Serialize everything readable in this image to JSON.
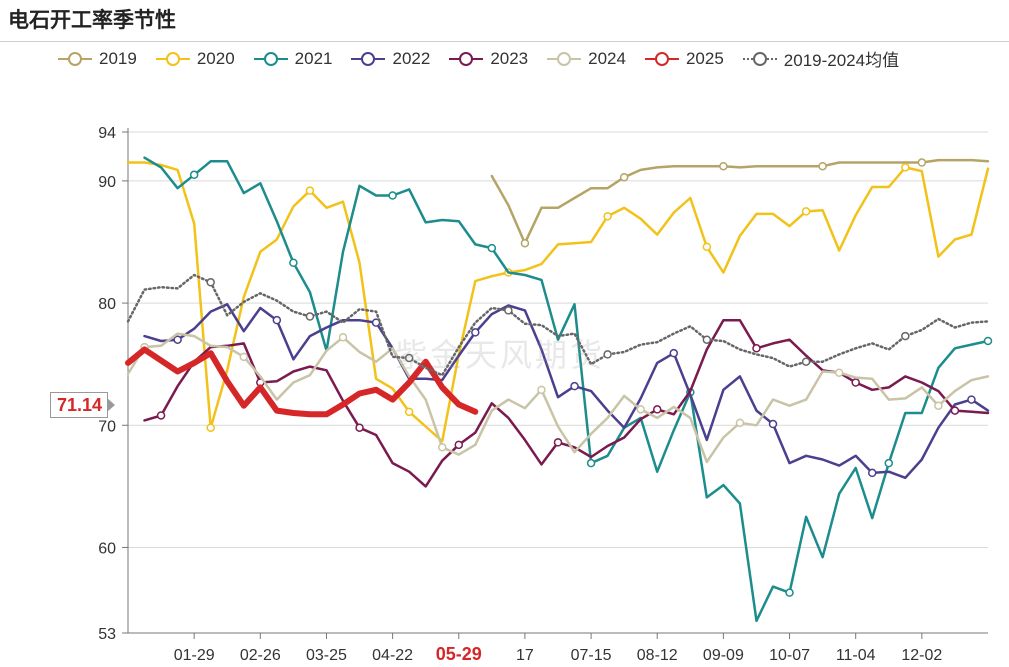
{
  "title": "电石开工率季节性",
  "watermark": "紫金天风期货",
  "callout": "71.14",
  "chart_data": {
    "type": "line",
    "title": "电石开工率季节性",
    "xlabel": "",
    "ylabel": "",
    "ylim": [
      53,
      94
    ],
    "yticks": [
      53,
      60,
      70,
      80,
      90,
      94
    ],
    "x": [
      "01-01",
      "01-08",
      "01-15",
      "01-22",
      "01-29",
      "02-05",
      "02-12",
      "02-19",
      "02-26",
      "03-04",
      "03-11",
      "03-18",
      "03-25",
      "04-01",
      "04-08",
      "04-15",
      "04-22",
      "04-29",
      "05-06",
      "05-13",
      "05-20",
      "05-27",
      "06-03",
      "06-10",
      "06-17",
      "06-24",
      "07-01",
      "07-08",
      "07-15",
      "07-22",
      "07-29",
      "08-05",
      "08-12",
      "08-19",
      "08-26",
      "09-02",
      "09-09",
      "09-16",
      "09-23",
      "09-30",
      "10-07",
      "10-14",
      "10-21",
      "10-28",
      "11-04",
      "11-11",
      "11-18",
      "11-25",
      "12-02",
      "12-09",
      "12-16",
      "12-23",
      "12-30"
    ],
    "xticks": [
      "01-29",
      "02-26",
      "03-25",
      "04-22",
      "05-29",
      "17",
      "07-15",
      "08-12",
      "09-09",
      "10-07",
      "11-04",
      "12-02"
    ],
    "xtick_highlight": "05-29",
    "legend_position": "top",
    "series": [
      {
        "name": "2019",
        "color": "#b5a466",
        "values": [
          null,
          null,
          null,
          null,
          null,
          null,
          null,
          null,
          null,
          null,
          null,
          null,
          null,
          null,
          null,
          null,
          null,
          null,
          null,
          null,
          null,
          null,
          90.4,
          88,
          84.9,
          87.8,
          87.8,
          88.6,
          89.4,
          89.4,
          90.3,
          90.9,
          91.1,
          91.2,
          91.2,
          91.2,
          91.2,
          91.1,
          91.2,
          91.2,
          91.2,
          91.2,
          91.2,
          91.5,
          91.5,
          91.5,
          91.5,
          91.5,
          91.5,
          91.7,
          91.7,
          91.7,
          91.6
        ]
      },
      {
        "name": "2020",
        "color": "#f2c218",
        "values": [
          91.5,
          91.5,
          91.3,
          90.9,
          86.5,
          69.8,
          74.5,
          80.5,
          84.2,
          85.2,
          87.9,
          89.2,
          87.8,
          88.3,
          83.3,
          73.8,
          73,
          71.1,
          69.9,
          68.7,
          75.8,
          81.8,
          82.2,
          82.5,
          82.7,
          83.2,
          84.8,
          84.9,
          85,
          87.1,
          87.8,
          86.9,
          85.6,
          87.4,
          88.6,
          84.6,
          82.5,
          85.5,
          87.3,
          87.3,
          86.3,
          87.5,
          87.6,
          84.3,
          87.2,
          89.5,
          89.5,
          91.1,
          90.8,
          83.8,
          85.2,
          85.6,
          91
        ]
      },
      {
        "name": "2021",
        "color": "#1c8c8c",
        "values": [
          null,
          91.9,
          91.1,
          89.4,
          90.5,
          91.6,
          91.6,
          89,
          89.8,
          86.7,
          83.3,
          80.9,
          76.1,
          84.2,
          89.6,
          88.8,
          88.8,
          89.3,
          86.6,
          86.8,
          86.7,
          84.8,
          84.5,
          82.5,
          82.3,
          81.9,
          77,
          79.9,
          66.9,
          67.5,
          69.8,
          70.6,
          66.2,
          69.6,
          72.7,
          64.1,
          65.1,
          63.6,
          54,
          56.8,
          56.3,
          62.5,
          59.2,
          64.4,
          66.5,
          62.4,
          66.9,
          71,
          71,
          74.7,
          76.3,
          76.6,
          76.9
        ]
      },
      {
        "name": "2022",
        "color": "#4b3f8f",
        "values": [
          null,
          77.3,
          76.9,
          77,
          77.9,
          79.3,
          79.9,
          77.7,
          79.6,
          78.6,
          75.4,
          77.3,
          78,
          78.6,
          78.6,
          78.4,
          76.3,
          73.8,
          73.8,
          73.7,
          75.7,
          77.6,
          79.1,
          79.8,
          79.4,
          76.2,
          72.3,
          73.2,
          72.8,
          71.2,
          69.8,
          72.2,
          75.1,
          75.9,
          72.5,
          68.8,
          72.9,
          74,
          71.2,
          70.1,
          66.9,
          67.5,
          67.2,
          66.7,
          67.5,
          66.1,
          66.2,
          65.7,
          67.2,
          69.8,
          71.7,
          72.1,
          71.2
        ]
      },
      {
        "name": "2023",
        "color": "#7a1a4f",
        "values": [
          null,
          70.4,
          70.8,
          73.2,
          75.2,
          76.4,
          76.5,
          76.7,
          73.5,
          73.6,
          74.4,
          74.8,
          74.5,
          72,
          69.8,
          69.2,
          66.9,
          66.2,
          65,
          67.1,
          68.4,
          69.4,
          71.8,
          70.6,
          68.8,
          66.8,
          68.6,
          68.2,
          67.4,
          68.3,
          69,
          70.5,
          71.3,
          70.9,
          72.8,
          76.2,
          78.6,
          78.6,
          76.3,
          76.7,
          77,
          75.7,
          74.5,
          74.3,
          73.5,
          72.9,
          73.1,
          74,
          73.5,
          72.8,
          71.2,
          71.1,
          71
        ]
      },
      {
        "name": "2024",
        "color": "#c9c4a6",
        "values": [
          74.2,
          76.4,
          76.5,
          77.5,
          77.3,
          76.5,
          76.4,
          75.6,
          74,
          72.1,
          73.5,
          74.1,
          76.1,
          77.2,
          76,
          75.2,
          76.3,
          74,
          72.1,
          68.2,
          67.6,
          68.4,
          71.2,
          72.1,
          71.4,
          72.9,
          69.9,
          67.8,
          69.3,
          70.6,
          72.4,
          71.3,
          70.6,
          71.5,
          70.6,
          67,
          69,
          70.2,
          70,
          72.1,
          71.6,
          72.1,
          74.4,
          74.3,
          73.9,
          73.8,
          72.1,
          72.2,
          73.1,
          71.6,
          72.8,
          73.7,
          74
        ]
      },
      {
        "name": "2025",
        "color": "#d62728",
        "values": [
          75.1,
          76.2,
          75.3,
          74.4,
          75.1,
          75.9,
          73.6,
          71.6,
          73.1,
          71.2,
          71,
          70.9,
          70.9,
          71.7,
          72.6,
          72.9,
          72.1,
          73.5,
          75.2,
          73.1,
          71.7,
          71.1,
          null,
          null,
          null,
          null,
          null,
          null,
          null,
          null,
          null,
          null,
          null,
          null,
          null,
          null,
          null,
          null,
          null,
          null,
          null,
          null,
          null,
          null,
          null,
          null,
          null,
          null,
          null,
          null,
          null,
          null,
          null
        ]
      },
      {
        "name": "2019-2024均值",
        "color": "#666666",
        "values": [
          78.5,
          81.1,
          81.3,
          81.2,
          82.3,
          81.7,
          79,
          80.1,
          80.8,
          80.2,
          79.3,
          78.9,
          79.3,
          78.4,
          79.5,
          79.3,
          75.6,
          75.5,
          74.7,
          74.1,
          76.4,
          78.4,
          79.6,
          79.4,
          78.3,
          78.2,
          77.3,
          77.5,
          75,
          75.8,
          76,
          76.6,
          76.8,
          77.5,
          78.1,
          77,
          76.9,
          76.2,
          75.8,
          75.5,
          74.8,
          75.2,
          75.2,
          75.8,
          76.3,
          76.7,
          76.2,
          77.3,
          77.8,
          78.7,
          78,
          78.4,
          78.5
        ]
      }
    ]
  }
}
